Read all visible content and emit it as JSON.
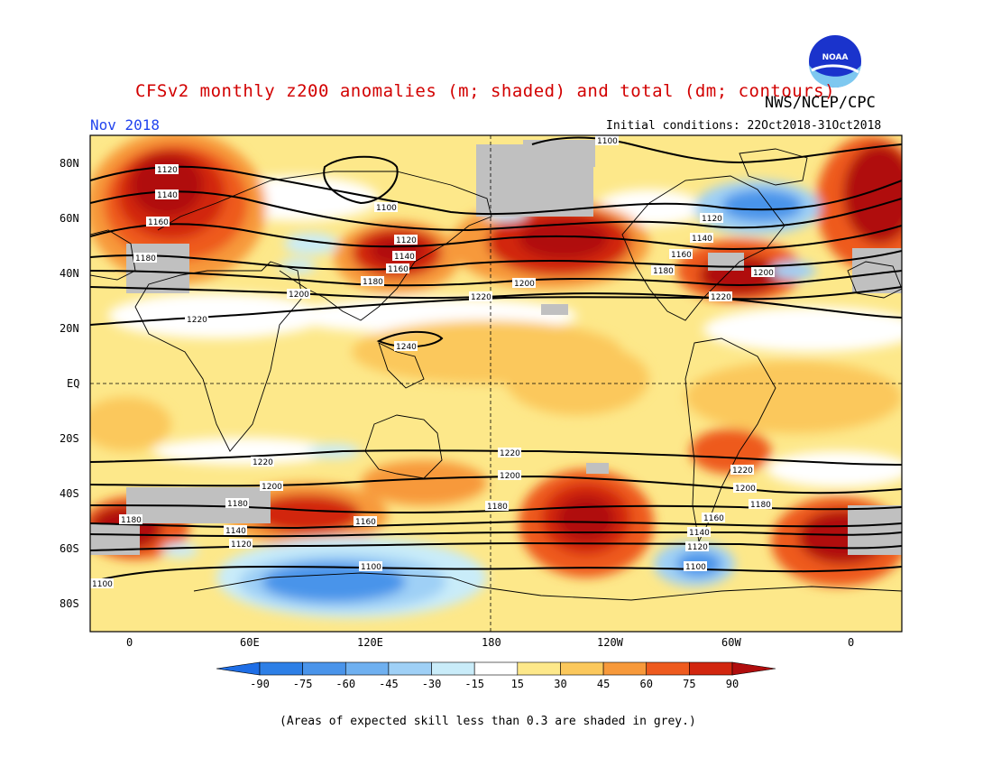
{
  "header": {
    "title": "CFSv2 monthly z200 anomalies (m; shaded) and total (dm; contours)",
    "agency": "NWS/NCEP/CPC",
    "month": "Nov 2018",
    "initial_conditions": "Initial conditions: 22Oct2018-31Oct2018",
    "logo_text": "NOAA"
  },
  "axes": {
    "lat_labels": [
      "80N",
      "60N",
      "40N",
      "20N",
      "EQ",
      "20S",
      "40S",
      "60S",
      "80S"
    ],
    "lon_labels": [
      "0",
      "60E",
      "120E",
      "180",
      "120W",
      "60W",
      "0"
    ]
  },
  "colorbar": {
    "levels": [
      "-90",
      "-75",
      "-60",
      "-45",
      "-30",
      "-15",
      "15",
      "30",
      "45",
      "60",
      "75",
      "90"
    ],
    "colors": {
      "neg_extreme": "#1e6ee6",
      "neg_bins": [
        "#2d7fe6",
        "#4a94ea",
        "#6fb0f0",
        "#9fd0f6",
        "#c9ecf9"
      ],
      "neutral": "#ffffff",
      "pos_bins": [
        "#fde88a",
        "#fbc85c",
        "#f7993b",
        "#ee5a1e",
        "#d2260f"
      ],
      "pos_extreme": "#b00d0d",
      "grey_mask": "#c0c0c0"
    }
  },
  "contour_labels": [
    "1100",
    "1120",
    "1140",
    "1160",
    "1180",
    "1200",
    "1220",
    "1240"
  ],
  "footnote": "(Areas of expected skill less than 0.3 are shaded in grey.)"
}
